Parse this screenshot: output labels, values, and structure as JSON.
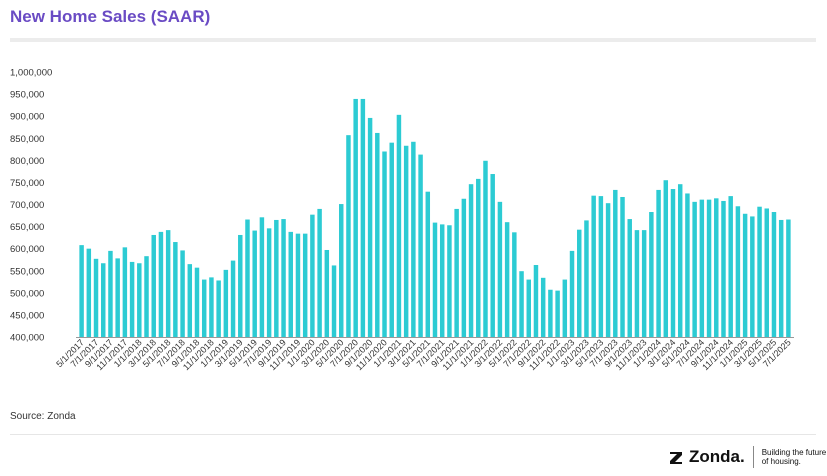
{
  "header": {
    "title": "New Home Sales (SAAR)"
  },
  "footer": {
    "source": "Source: Zonda",
    "brand_name": "Zonda.",
    "tagline": "Building the future of housing."
  },
  "colors": {
    "bar": "#2ccbd3",
    "title": "#6a4bc4",
    "axis": "#999999",
    "text": "#333333"
  },
  "chart_data": {
    "type": "bar",
    "title": "New Home Sales (SAAR)",
    "xlabel": "",
    "ylabel": "",
    "ylim": [
      400000,
      1000000
    ],
    "yticks": [
      400000,
      450000,
      500000,
      550000,
      600000,
      650000,
      700000,
      750000,
      800000,
      850000,
      900000,
      950000,
      1000000
    ],
    "ytick_labels": [
      "400,000",
      "450,000",
      "500,000",
      "550,000",
      "600,000",
      "650,000",
      "700,000",
      "750,000",
      "800,000",
      "850,000",
      "900,000",
      "950,000",
      "1,000,000"
    ],
    "grid": false,
    "categories": [
      "5/1/2017",
      "6/1/2017",
      "7/1/2017",
      "8/1/2017",
      "9/1/2017",
      "10/1/2017",
      "11/1/2017",
      "12/1/2017",
      "1/1/2018",
      "2/1/2018",
      "3/1/2018",
      "4/1/2018",
      "5/1/2018",
      "6/1/2018",
      "7/1/2018",
      "8/1/2018",
      "9/1/2018",
      "10/1/2018",
      "11/1/2018",
      "12/1/2018",
      "1/1/2019",
      "2/1/2019",
      "3/1/2019",
      "4/1/2019",
      "5/1/2019",
      "6/1/2019",
      "7/1/2019",
      "8/1/2019",
      "9/1/2019",
      "10/1/2019",
      "11/1/2019",
      "12/1/2019",
      "1/1/2020",
      "2/1/2020",
      "3/1/2020",
      "4/1/2020",
      "5/1/2020",
      "6/1/2020",
      "7/1/2020",
      "8/1/2020",
      "9/1/2020",
      "10/1/2020",
      "11/1/2020",
      "12/1/2020",
      "1/1/2021",
      "2/1/2021",
      "3/1/2021",
      "4/1/2021",
      "5/1/2021",
      "6/1/2021",
      "7/1/2021",
      "8/1/2021",
      "9/1/2021",
      "10/1/2021",
      "11/1/2021",
      "12/1/2021",
      "1/1/2022",
      "2/1/2022",
      "3/1/2022",
      "4/1/2022",
      "5/1/2022",
      "6/1/2022",
      "7/1/2022",
      "8/1/2022",
      "9/1/2022",
      "10/1/2022",
      "11/1/2022",
      "12/1/2022",
      "1/1/2023",
      "2/1/2023",
      "3/1/2023",
      "4/1/2023",
      "5/1/2023",
      "6/1/2023",
      "7/1/2023",
      "8/1/2023",
      "9/1/2023",
      "10/1/2023",
      "11/1/2023",
      "12/1/2023",
      "1/1/2024",
      "2/1/2024",
      "3/1/2024",
      "4/1/2024",
      "5/1/2024",
      "6/1/2024",
      "7/1/2024",
      "8/1/2024",
      "9/1/2024",
      "10/1/2024",
      "11/1/2024",
      "12/1/2024",
      "1/1/2025",
      "2/1/2025",
      "3/1/2025",
      "4/1/2025",
      "5/1/2025",
      "6/1/2025",
      "7/1/2025"
    ],
    "x_tick_labels": [
      "5/1/2017",
      "7/1/2017",
      "9/1/2017",
      "11/1/2017",
      "1/1/2018",
      "3/1/2018",
      "5/1/2018",
      "7/1/2018",
      "9/1/2018",
      "11/1/2018",
      "1/1/2019",
      "3/1/2019",
      "5/1/2019",
      "7/1/2019",
      "9/1/2019",
      "11/1/2019",
      "1/1/2020",
      "3/1/2020",
      "5/1/2020",
      "7/1/2020",
      "9/1/2020",
      "11/1/2020",
      "1/1/2021",
      "3/1/2021",
      "5/1/2021",
      "7/1/2021",
      "9/1/2021",
      "11/1/2021",
      "1/1/2022",
      "3/1/2022",
      "5/1/2022",
      "7/1/2022",
      "9/1/2022",
      "11/1/2022",
      "1/1/2023",
      "3/1/2023",
      "5/1/2023",
      "7/1/2023",
      "9/1/2023",
      "11/1/2023",
      "1/1/2024",
      "3/1/2024",
      "5/1/2024",
      "7/1/2024",
      "9/1/2024",
      "11/1/2024",
      "1/1/2025",
      "3/1/2025",
      "5/1/2025",
      "7/1/2025"
    ],
    "series": [
      {
        "values": [
          608000,
          600000,
          577000,
          567000,
          595000,
          578000,
          603000,
          570000,
          567000,
          583000,
          631000,
          638000,
          642000,
          615000,
          596000,
          565000,
          557000,
          530000,
          535000,
          528000,
          552000,
          573000,
          631000,
          666000,
          641000,
          671000,
          646000,
          665000,
          667000,
          638000,
          634000,
          634000,
          677000,
          690000,
          597000,
          562000,
          701000,
          857000,
          939000,
          939000,
          896000,
          862000,
          820000,
          840000,
          903000,
          833000,
          842000,
          813000,
          729000,
          659000,
          655000,
          653000,
          690000,
          713000,
          746000,
          758000,
          799000,
          769000,
          706000,
          660000,
          637000,
          549000,
          530000,
          563000,
          534000,
          507000,
          505000,
          530000,
          595000,
          643000,
          664000,
          720000,
          719000,
          703000,
          733000,
          717000,
          667000,
          642000,
          642000,
          683000,
          733000,
          755000,
          735000,
          746000,
          725000,
          706000,
          711000,
          711000,
          714000,
          708000,
          719000,
          696000,
          679000,
          673000,
          695000,
          691000,
          683000,
          665000,
          666000
        ]
      }
    ]
  }
}
